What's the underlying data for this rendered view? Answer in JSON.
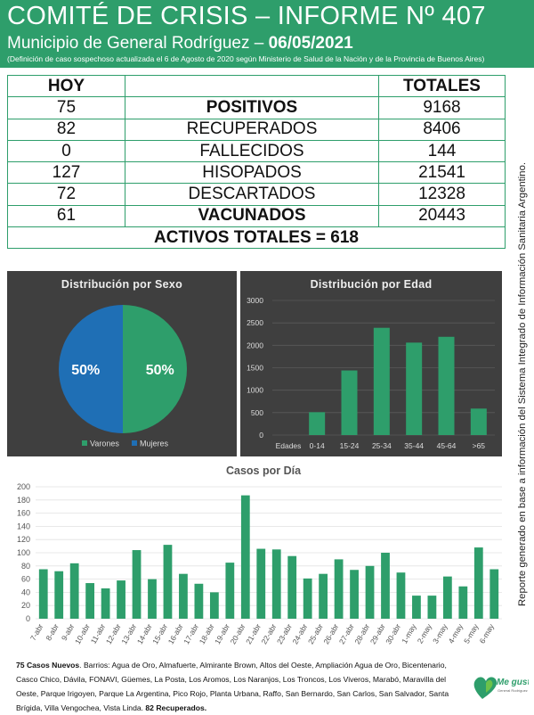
{
  "header": {
    "title": "COMITÉ DE CRISIS – INFORME Nº 407",
    "subtitle_prefix": "Municipio de General Rodríguez – ",
    "subtitle_date": "06/05/2021",
    "note": "(Definición de caso sospechoso actualizada el 6 de Agosto de 2020 según Ministerio de Salud de la Nación y de la Provincia de Buenos Aires)"
  },
  "table": {
    "col_hoy": "HOY",
    "col_totales": "TOTALES",
    "rows": [
      {
        "hoy": "75",
        "label": "POSITIVOS",
        "total": "9168"
      },
      {
        "hoy": "82",
        "label": "RECUPERADOS",
        "total": "8406"
      },
      {
        "hoy": "0",
        "label": "FALLECIDOS",
        "total": "144"
      },
      {
        "hoy": "127",
        "label": "HISOPADOS",
        "total": "21541"
      },
      {
        "hoy": "72",
        "label": "DESCARTADOS",
        "total": "12328"
      },
      {
        "hoy": "61",
        "label": "VACUNADOS",
        "total": "20443"
      }
    ],
    "activos": "ACTIVOS TOTALES = 618"
  },
  "sidenote": "Reporte generado en base a información del Sistema Integrado de Información Sanitaria Argentino.",
  "colors": {
    "green": "#2e9e6b",
    "blue": "#1f6fb5",
    "orange": "#e8912c",
    "dark_panel": "#3f3f3f"
  },
  "chart_data": [
    {
      "type": "pie",
      "title": "Distribución por Sexo",
      "labels": [
        "Varones",
        "Mujeres"
      ],
      "values": [
        50,
        50
      ],
      "data_labels": [
        "50%",
        "50%"
      ],
      "colors": [
        "#2e9e6b",
        "#1f6fb5"
      ],
      "legend": "bottom"
    },
    {
      "type": "bar",
      "title": "Distribución por Edad",
      "axis_label": "Edades",
      "categories": [
        "0-14",
        "15-24",
        "25-34",
        "35-44",
        "45-64",
        ">65"
      ],
      "values": [
        510,
        1440,
        2390,
        2060,
        2190,
        590
      ],
      "ylim": [
        0,
        3000
      ],
      "yticks": [
        "0",
        "500",
        "1000",
        "1500",
        "2000",
        "2500",
        "3000"
      ],
      "grid": true
    },
    {
      "type": "bar",
      "title": "Casos por Día",
      "categories": [
        "7-abr",
        "8-abr",
        "9-abr",
        "10-abr",
        "11-abr",
        "12-abr",
        "13-abr",
        "14-abr",
        "15-abr",
        "16-abr",
        "17-abr",
        "18-abr",
        "19-abr",
        "20-abr",
        "21-abr",
        "22-abr",
        "23-abr",
        "24-abr",
        "25-abr",
        "26-abr",
        "27-abr",
        "28-abr",
        "29-abr",
        "30-abr",
        "1-may",
        "2-may",
        "3-may",
        "4-may",
        "5-may",
        "6-may"
      ],
      "values": [
        75,
        72,
        84,
        54,
        46,
        58,
        104,
        60,
        112,
        68,
        53,
        40,
        85,
        187,
        106,
        105,
        95,
        61,
        68,
        90,
        74,
        80,
        100,
        70,
        35,
        35,
        64,
        49,
        108,
        75
      ],
      "ylim": [
        0,
        200
      ],
      "yticks": [
        "0",
        "20",
        "40",
        "60",
        "80",
        "100",
        "120",
        "140",
        "160",
        "180",
        "200"
      ],
      "grid": true
    }
  ],
  "footer": {
    "lead": "75 Casos Nuevos",
    "body": ". Barrios: Agua de Oro, Almafuerte, Almirante Brown, Altos del Oeste, Ampliación Agua de Oro, Bicentenario, Casco Chico, Dávila, FONAVI, Güemes, La Posta, Los Aromos, Los Naranjos, Los Troncos, Los Viveros, Marabó, Maravilla del Oeste, Parque Irigoyen, Parque La Argentina, Pico Rojo, Planta Urbana, Raffo, San Bernardo, San Carlos, San Salvador, Santa Brígida, Villa Vengochea, Vista Linda. ",
    "tail": "82 Recuperados."
  },
  "logo": {
    "line1": "Me gusta",
    "line2": "General Rodríguez"
  }
}
